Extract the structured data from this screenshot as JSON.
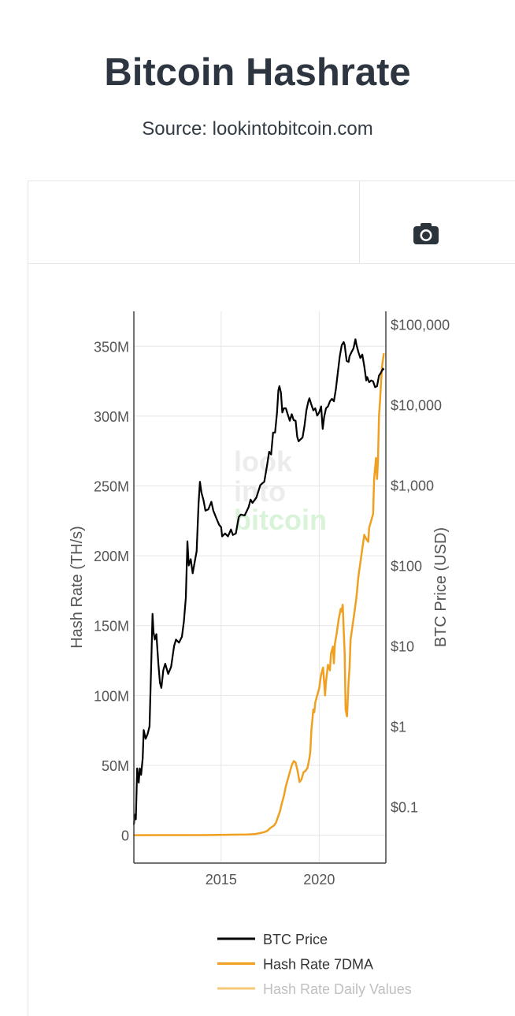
{
  "header": {
    "title": "Bitcoin Hashrate",
    "source": "Source: lookintobitcoin.com"
  },
  "toolbar": {
    "camera_icon": "camera-icon"
  },
  "watermark": [
    "look",
    "into",
    "bitcoin"
  ],
  "colors": {
    "btc_price": "#000000",
    "hash_rate_7dma": "#f0a020",
    "hash_rate_daily": "#f6c878",
    "grid": "#e6e6e6",
    "axis_text": "#555555"
  },
  "chart_data": {
    "type": "line",
    "title": "Bitcoin Hashrate",
    "subtitle": "Source: lookintobitcoin.com",
    "y_left": {
      "label": "Hash Rate (TH/s)",
      "range": [
        -20,
        375
      ],
      "ticks": [
        0,
        50,
        100,
        150,
        200,
        250,
        300,
        350
      ],
      "tick_labels": [
        "0",
        "50M",
        "100M",
        "150M",
        "200M",
        "250M",
        "300M",
        "350M"
      ]
    },
    "y_right": {
      "label": "BTC Price (USD)",
      "scale": "log",
      "range_log10": [
        -1.7,
        5.16
      ],
      "ticks_log10": [
        -1,
        0,
        1,
        2,
        3,
        4,
        5
      ],
      "tick_labels": [
        "$0.1",
        "$1",
        "$10",
        "$100",
        "$1,000",
        "$10,000",
        "$100,000"
      ]
    },
    "x": {
      "range": [
        2010.55,
        2023.4
      ],
      "ticks": [
        2015,
        2020
      ],
      "tick_labels": [
        "2015",
        "2020"
      ]
    },
    "grid": true,
    "legend": {
      "placement": "bottom",
      "entries": [
        "BTC Price",
        "Hash Rate 7DMA",
        "Hash Rate Daily Values"
      ]
    },
    "series": [
      {
        "name": "BTC Price",
        "axis": "right",
        "x": [
          2010.55,
          2010.6,
          2010.65,
          2010.72,
          2010.8,
          2010.85,
          2010.92,
          2011.0,
          2011.05,
          2011.15,
          2011.25,
          2011.35,
          2011.45,
          2011.5,
          2011.55,
          2011.62,
          2011.7,
          2011.8,
          2011.88,
          2011.95,
          2012.05,
          2012.15,
          2012.3,
          2012.45,
          2012.6,
          2012.7,
          2012.85,
          2013.0,
          2013.1,
          2013.2,
          2013.28,
          2013.35,
          2013.45,
          2013.55,
          2013.65,
          2013.75,
          2013.85,
          2013.92,
          2014.0,
          2014.1,
          2014.2,
          2014.35,
          2014.5,
          2014.6,
          2014.75,
          2014.9,
          2015.0,
          2015.05,
          2015.2,
          2015.35,
          2015.5,
          2015.6,
          2015.75,
          2015.9,
          2016.0,
          2016.2,
          2016.4,
          2016.5,
          2016.6,
          2016.8,
          2017.0,
          2017.1,
          2017.2,
          2017.35,
          2017.45,
          2017.55,
          2017.65,
          2017.75,
          2017.85,
          2017.92,
          2017.97,
          2018.05,
          2018.12,
          2018.2,
          2018.3,
          2018.4,
          2018.5,
          2018.6,
          2018.7,
          2018.8,
          2018.88,
          2018.95,
          2019.05,
          2019.15,
          2019.25,
          2019.35,
          2019.45,
          2019.5,
          2019.6,
          2019.7,
          2019.8,
          2019.9,
          2020.0,
          2020.1,
          2020.18,
          2020.25,
          2020.35,
          2020.45,
          2020.55,
          2020.65,
          2020.75,
          2020.85,
          2020.95,
          2021.05,
          2021.15,
          2021.25,
          2021.3,
          2021.4,
          2021.5,
          2021.55,
          2021.65,
          2021.75,
          2021.85,
          2021.9,
          2022.0,
          2022.1,
          2022.2,
          2022.3,
          2022.4,
          2022.45,
          2022.55,
          2022.65,
          2022.75,
          2022.85,
          2022.95,
          2023.05,
          2023.15,
          2023.25,
          2023.3
        ],
        "y": [
          0.06,
          0.08,
          0.07,
          0.3,
          0.2,
          0.3,
          0.25,
          0.4,
          0.9,
          0.7,
          0.8,
          1.0,
          8.0,
          25.0,
          15.0,
          12.0,
          14.0,
          6.0,
          3.5,
          3.0,
          5.0,
          6.0,
          4.5,
          5.5,
          10.0,
          12.0,
          11.0,
          13.0,
          20.0,
          40.0,
          200.0,
          100.0,
          120.0,
          80.0,
          110.0,
          150.0,
          600.0,
          1100.0,
          800.0,
          650.0,
          480.0,
          500.0,
          620.0,
          480.0,
          390.0,
          320.0,
          300.0,
          230.0,
          250.0,
          230.0,
          280.0,
          240.0,
          250.0,
          400.0,
          430.0,
          420.0,
          530.0,
          660.0,
          600.0,
          700.0,
          1000.0,
          1050.0,
          1100.0,
          1800.0,
          2600.0,
          2400.0,
          4500.0,
          4500.0,
          8000.0,
          15000.0,
          17000.0,
          14000.0,
          8000.0,
          9000.0,
          9000.0,
          7500.0,
          6300.0,
          7600.0,
          6400.0,
          6300.0,
          4000.0,
          3500.0,
          3700.0,
          3900.0,
          5500.0,
          8500.0,
          11000.0,
          12000.0,
          10000.0,
          8500.0,
          9000.0,
          7300.0,
          8000.0,
          9500.0,
          5000.0,
          7000.0,
          9000.0,
          9500.0,
          11000.0,
          11800.0,
          11000.0,
          15500.0,
          25000.0,
          40000.0,
          55000.0,
          60000.0,
          55000.0,
          35000.0,
          34000.0,
          40000.0,
          45000.0,
          50000.0,
          65000.0,
          56000.0,
          45000.0,
          38000.0,
          42000.0,
          30000.0,
          20000.0,
          22000.0,
          19000.0,
          20000.0,
          19500.0,
          16500.0,
          17000.0,
          23000.0,
          25000.0,
          28000.0,
          27000.0
        ]
      },
      {
        "name": "Hash Rate 7DMA",
        "axis": "left",
        "x": [
          2010.55,
          2012.0,
          2013.5,
          2014.5,
          2015.5,
          2016.3,
          2016.7,
          2017.0,
          2017.2,
          2017.35,
          2017.5,
          2017.6,
          2017.7,
          2017.8,
          2017.9,
          2018.0,
          2018.1,
          2018.2,
          2018.3,
          2018.4,
          2018.5,
          2018.6,
          2018.7,
          2018.8,
          2018.9,
          2019.0,
          2019.1,
          2019.2,
          2019.3,
          2019.4,
          2019.5,
          2019.55,
          2019.6,
          2019.7,
          2019.75,
          2019.8,
          2019.9,
          2020.0,
          2020.1,
          2020.2,
          2020.3,
          2020.35,
          2020.45,
          2020.55,
          2020.6,
          2020.7,
          2020.75,
          2020.8,
          2020.9,
          2021.0,
          2021.1,
          2021.15,
          2021.2,
          2021.3,
          2021.35,
          2021.42,
          2021.5,
          2021.55,
          2021.6,
          2021.7,
          2021.8,
          2021.9,
          2022.0,
          2022.1,
          2022.2,
          2022.3,
          2022.4,
          2022.5,
          2022.55,
          2022.65,
          2022.75,
          2022.8,
          2022.9,
          2022.95,
          2023.0,
          2023.05,
          2023.1,
          2023.2,
          2023.3
        ],
        "y": [
          0.0,
          0.01,
          0.01,
          0.1,
          0.3,
          0.5,
          0.7,
          1.5,
          2.2,
          3.0,
          5.0,
          6.0,
          7.0,
          9.0,
          13.0,
          17.0,
          23.0,
          28.0,
          35.0,
          40.0,
          45.0,
          50.0,
          53.0,
          52.0,
          46.0,
          38.0,
          40.0,
          45.0,
          46.0,
          48.0,
          55.0,
          60.0,
          75.0,
          90.0,
          88.0,
          95.0,
          100.0,
          105.0,
          115.0,
          120.0,
          100.0,
          110.0,
          122.0,
          118.0,
          130.0,
          135.0,
          123.0,
          137.0,
          145.0,
          155.0,
          162.0,
          160.0,
          165.0,
          130.0,
          90.0,
          85.0,
          110.0,
          120.0,
          140.0,
          150.0,
          160.0,
          170.0,
          185.0,
          195.0,
          205.0,
          215.0,
          212.0,
          210.0,
          220.0,
          225.0,
          230.0,
          255.0,
          270.0,
          255.0,
          268.0,
          300.0,
          310.0,
          335.0,
          345.0
        ]
      }
    ]
  }
}
